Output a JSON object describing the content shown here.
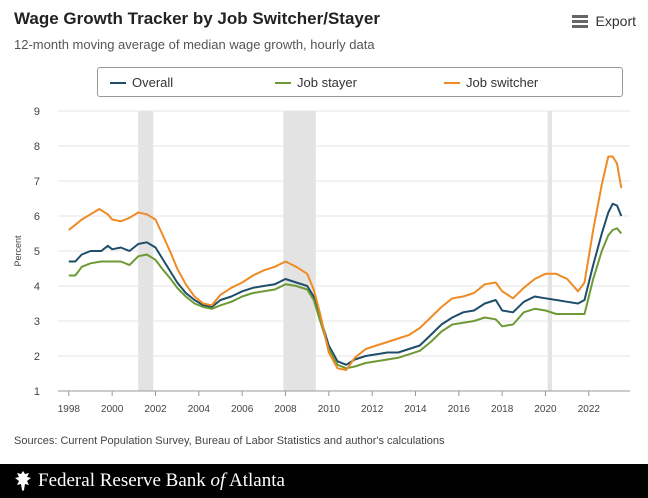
{
  "header": {
    "title": "Wage Growth Tracker by Job Switcher/Stayer",
    "subtitle": "12-month moving average of median wage growth, hourly data",
    "export_label": "Export"
  },
  "footer": {
    "sources": "Sources: Current Population Survey, Bureau of Labor Statistics and author's calculations",
    "brand_pre": "Federal Reserve Bank ",
    "brand_of": "of",
    "brand_post": " Atlanta"
  },
  "chart_data": {
    "type": "line",
    "title": "Wage Growth Tracker by Job Switcher/Stayer",
    "subtitle": "12-month moving average of median wage growth, hourly data",
    "xlabel": "",
    "ylabel": "Percent",
    "xlim": [
      1997.5,
      2023.9
    ],
    "ylim": [
      1,
      9
    ],
    "x_ticks": [
      1998,
      2000,
      2002,
      2004,
      2006,
      2008,
      2010,
      2012,
      2014,
      2016,
      2018,
      2020,
      2022
    ],
    "y_ticks": [
      1,
      2,
      3,
      4,
      5,
      6,
      7,
      8,
      9
    ],
    "grid": "horizontal",
    "legend_position": "top",
    "recessions": [
      [
        2001.2,
        2001.9
      ],
      [
        2007.9,
        2009.4
      ],
      [
        2020.1,
        2020.3
      ]
    ],
    "series": [
      {
        "name": "Overall",
        "color": "#1f4e6b",
        "points": [
          [
            1998.0,
            4.7
          ],
          [
            1998.3,
            4.7
          ],
          [
            1998.6,
            4.9
          ],
          [
            1999.0,
            5.0
          ],
          [
            1999.5,
            5.0
          ],
          [
            1999.8,
            5.15
          ],
          [
            2000.0,
            5.05
          ],
          [
            2000.4,
            5.1
          ],
          [
            2000.8,
            5.0
          ],
          [
            2001.2,
            5.2
          ],
          [
            2001.6,
            5.25
          ],
          [
            2002.0,
            5.1
          ],
          [
            2002.3,
            4.8
          ],
          [
            2002.7,
            4.4
          ],
          [
            2003.0,
            4.1
          ],
          [
            2003.4,
            3.8
          ],
          [
            2003.8,
            3.6
          ],
          [
            2004.2,
            3.45
          ],
          [
            2004.6,
            3.4
          ],
          [
            2005.0,
            3.6
          ],
          [
            2005.5,
            3.7
          ],
          [
            2006.0,
            3.85
          ],
          [
            2006.5,
            3.95
          ],
          [
            2007.0,
            4.0
          ],
          [
            2007.5,
            4.05
          ],
          [
            2008.0,
            4.2
          ],
          [
            2008.5,
            4.1
          ],
          [
            2009.0,
            4.0
          ],
          [
            2009.3,
            3.7
          ],
          [
            2009.6,
            3.1
          ],
          [
            2010.0,
            2.3
          ],
          [
            2010.4,
            1.85
          ],
          [
            2010.8,
            1.75
          ],
          [
            2011.2,
            1.9
          ],
          [
            2011.7,
            2.0
          ],
          [
            2012.2,
            2.05
          ],
          [
            2012.7,
            2.1
          ],
          [
            2013.2,
            2.1
          ],
          [
            2013.7,
            2.2
          ],
          [
            2014.2,
            2.3
          ],
          [
            2014.7,
            2.6
          ],
          [
            2015.2,
            2.9
          ],
          [
            2015.7,
            3.1
          ],
          [
            2016.2,
            3.25
          ],
          [
            2016.7,
            3.3
          ],
          [
            2017.2,
            3.5
          ],
          [
            2017.7,
            3.6
          ],
          [
            2018.0,
            3.3
          ],
          [
            2018.5,
            3.25
          ],
          [
            2019.0,
            3.55
          ],
          [
            2019.5,
            3.7
          ],
          [
            2020.0,
            3.65
          ],
          [
            2020.5,
            3.6
          ],
          [
            2021.0,
            3.55
          ],
          [
            2021.5,
            3.5
          ],
          [
            2021.8,
            3.6
          ],
          [
            2022.2,
            4.6
          ],
          [
            2022.6,
            5.5
          ],
          [
            2022.9,
            6.1
          ],
          [
            2023.1,
            6.35
          ],
          [
            2023.3,
            6.3
          ],
          [
            2023.5,
            6.0
          ]
        ]
      },
      {
        "name": "Job stayer",
        "color": "#6e9a35",
        "points": [
          [
            1998.0,
            4.3
          ],
          [
            1998.3,
            4.3
          ],
          [
            1998.6,
            4.55
          ],
          [
            1999.0,
            4.65
          ],
          [
            1999.5,
            4.7
          ],
          [
            1999.8,
            4.7
          ],
          [
            2000.0,
            4.7
          ],
          [
            2000.4,
            4.7
          ],
          [
            2000.8,
            4.6
          ],
          [
            2001.2,
            4.85
          ],
          [
            2001.6,
            4.9
          ],
          [
            2002.0,
            4.75
          ],
          [
            2002.3,
            4.5
          ],
          [
            2002.7,
            4.2
          ],
          [
            2003.0,
            3.95
          ],
          [
            2003.4,
            3.7
          ],
          [
            2003.8,
            3.5
          ],
          [
            2004.2,
            3.4
          ],
          [
            2004.6,
            3.35
          ],
          [
            2005.0,
            3.45
          ],
          [
            2005.5,
            3.55
          ],
          [
            2006.0,
            3.7
          ],
          [
            2006.5,
            3.8
          ],
          [
            2007.0,
            3.85
          ],
          [
            2007.5,
            3.9
          ],
          [
            2008.0,
            4.05
          ],
          [
            2008.5,
            4.0
          ],
          [
            2009.0,
            3.9
          ],
          [
            2009.3,
            3.6
          ],
          [
            2009.6,
            3.0
          ],
          [
            2010.0,
            2.2
          ],
          [
            2010.4,
            1.75
          ],
          [
            2010.8,
            1.65
          ],
          [
            2011.2,
            1.7
          ],
          [
            2011.7,
            1.8
          ],
          [
            2012.2,
            1.85
          ],
          [
            2012.7,
            1.9
          ],
          [
            2013.2,
            1.95
          ],
          [
            2013.7,
            2.05
          ],
          [
            2014.2,
            2.15
          ],
          [
            2014.7,
            2.4
          ],
          [
            2015.2,
            2.7
          ],
          [
            2015.7,
            2.9
          ],
          [
            2016.2,
            2.95
          ],
          [
            2016.7,
            3.0
          ],
          [
            2017.2,
            3.1
          ],
          [
            2017.7,
            3.05
          ],
          [
            2018.0,
            2.85
          ],
          [
            2018.5,
            2.9
          ],
          [
            2019.0,
            3.25
          ],
          [
            2019.5,
            3.35
          ],
          [
            2020.0,
            3.3
          ],
          [
            2020.5,
            3.2
          ],
          [
            2021.0,
            3.2
          ],
          [
            2021.5,
            3.2
          ],
          [
            2021.8,
            3.2
          ],
          [
            2022.2,
            4.2
          ],
          [
            2022.6,
            5.0
          ],
          [
            2022.9,
            5.45
          ],
          [
            2023.1,
            5.6
          ],
          [
            2023.3,
            5.65
          ],
          [
            2023.5,
            5.5
          ]
        ]
      },
      {
        "name": "Job switcher",
        "color": "#f08a24",
        "points": [
          [
            1998.0,
            5.6
          ],
          [
            1998.3,
            5.75
          ],
          [
            1998.6,
            5.9
          ],
          [
            1999.0,
            6.05
          ],
          [
            1999.4,
            6.2
          ],
          [
            1999.8,
            6.05
          ],
          [
            2000.0,
            5.9
          ],
          [
            2000.4,
            5.85
          ],
          [
            2000.8,
            5.95
          ],
          [
            2001.2,
            6.1
          ],
          [
            2001.6,
            6.05
          ],
          [
            2002.0,
            5.9
          ],
          [
            2002.3,
            5.5
          ],
          [
            2002.7,
            4.95
          ],
          [
            2003.0,
            4.5
          ],
          [
            2003.4,
            4.05
          ],
          [
            2003.8,
            3.7
          ],
          [
            2004.2,
            3.5
          ],
          [
            2004.6,
            3.45
          ],
          [
            2005.0,
            3.75
          ],
          [
            2005.5,
            3.95
          ],
          [
            2006.0,
            4.1
          ],
          [
            2006.5,
            4.3
          ],
          [
            2007.0,
            4.45
          ],
          [
            2007.5,
            4.55
          ],
          [
            2008.0,
            4.7
          ],
          [
            2008.5,
            4.55
          ],
          [
            2009.0,
            4.35
          ],
          [
            2009.3,
            3.9
          ],
          [
            2009.6,
            3.2
          ],
          [
            2010.0,
            2.1
          ],
          [
            2010.4,
            1.65
          ],
          [
            2010.8,
            1.6
          ],
          [
            2011.2,
            1.95
          ],
          [
            2011.7,
            2.2
          ],
          [
            2012.2,
            2.3
          ],
          [
            2012.7,
            2.4
          ],
          [
            2013.2,
            2.5
          ],
          [
            2013.7,
            2.6
          ],
          [
            2014.2,
            2.8
          ],
          [
            2014.7,
            3.1
          ],
          [
            2015.2,
            3.4
          ],
          [
            2015.7,
            3.65
          ],
          [
            2016.2,
            3.7
          ],
          [
            2016.7,
            3.8
          ],
          [
            2017.2,
            4.05
          ],
          [
            2017.7,
            4.1
          ],
          [
            2018.0,
            3.85
          ],
          [
            2018.5,
            3.65
          ],
          [
            2019.0,
            3.95
          ],
          [
            2019.5,
            4.2
          ],
          [
            2020.0,
            4.35
          ],
          [
            2020.5,
            4.35
          ],
          [
            2021.0,
            4.2
          ],
          [
            2021.5,
            3.85
          ],
          [
            2021.8,
            4.1
          ],
          [
            2022.2,
            5.6
          ],
          [
            2022.6,
            6.9
          ],
          [
            2022.9,
            7.7
          ],
          [
            2023.1,
            7.7
          ],
          [
            2023.3,
            7.5
          ],
          [
            2023.5,
            6.8
          ]
        ]
      }
    ]
  }
}
